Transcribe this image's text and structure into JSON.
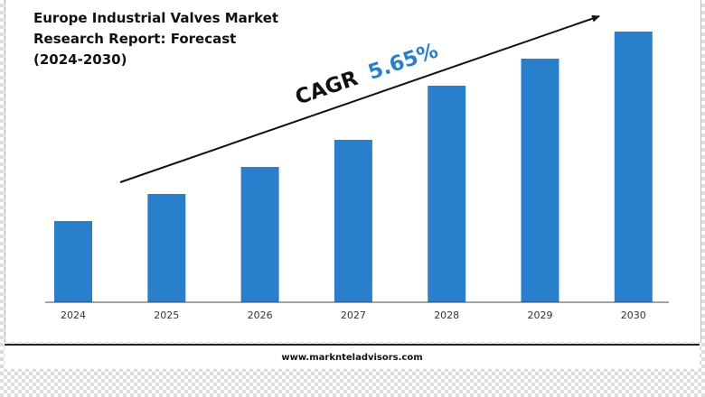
{
  "title_lines": [
    "Europe Industrial Valves Market",
    "Research Report: Forecast",
    "(2024-2030)"
  ],
  "cagr": {
    "label": "CAGR",
    "value": "5.65%"
  },
  "footer": {
    "url": "www.marknteladvisors.com"
  },
  "colors": {
    "bar": "#2a7fcc",
    "cagr_value": "#2a7fcc",
    "text": "#111111",
    "axis": "#444444"
  },
  "chart_data": {
    "type": "bar",
    "categories": [
      "2024",
      "2025",
      "2026",
      "2027",
      "2028",
      "2029",
      "2030"
    ],
    "values": [
      30,
      40,
      50,
      60,
      80,
      90,
      100
    ],
    "ylim": [
      0,
      100
    ],
    "title": "Europe Industrial Valves Market Research Report: Forecast (2024-2030)",
    "xlabel": "",
    "ylabel": "",
    "grid": false,
    "legend": "none"
  }
}
